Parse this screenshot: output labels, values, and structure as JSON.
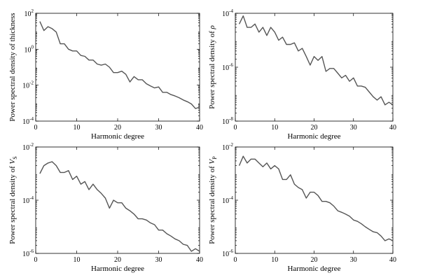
{
  "chart_data": [
    {
      "type": "line",
      "ylabel": "Power spectral density of thickness",
      "xlabel": "Harmonic degree",
      "xlim": [
        0,
        40
      ],
      "ylim": [
        0.0001,
        100
      ],
      "yscale": "log",
      "xticks": [
        0,
        10,
        20,
        30,
        40
      ],
      "xtick_labels": [
        "0",
        "10",
        "20",
        "30",
        "40"
      ],
      "yticks": [
        0.0001,
        0.01,
        1,
        100
      ],
      "ytick_labels": [
        {
          "base": "10",
          "exp": "-4"
        },
        {
          "base": "10",
          "exp": "-2"
        },
        {
          "base": "10",
          "exp": "0"
        },
        {
          "base": "10",
          "exp": "2"
        }
      ],
      "grid": false,
      "color": "#555555",
      "x": [
        1,
        2,
        3,
        4,
        5,
        6,
        7,
        8,
        9,
        10,
        11,
        12,
        13,
        14,
        15,
        16,
        17,
        18,
        19,
        20,
        21,
        22,
        23,
        24,
        25,
        26,
        27,
        28,
        29,
        30,
        31,
        32,
        33,
        34,
        35,
        36,
        37,
        38,
        39,
        40
      ],
      "values": [
        35,
        11,
        18,
        14,
        9,
        2,
        2,
        1,
        0.8,
        0.8,
        0.45,
        0.4,
        0.25,
        0.25,
        0.15,
        0.13,
        0.15,
        0.1,
        0.05,
        0.05,
        0.06,
        0.04,
        0.015,
        0.03,
        0.02,
        0.02,
        0.012,
        0.009,
        0.007,
        0.008,
        0.004,
        0.004,
        0.003,
        0.0025,
        0.002,
        0.0015,
        0.0012,
        0.0009,
        0.0005,
        0.0006
      ]
    },
    {
      "type": "line",
      "ylabel": "Power spectral density of ",
      "ylabel_var": "ρ",
      "xlabel": "Harmonic degree",
      "xlim": [
        0,
        40
      ],
      "ylim": [
        1e-08,
        0.0001
      ],
      "yscale": "log",
      "xticks": [
        0,
        10,
        20,
        30,
        40
      ],
      "xtick_labels": [
        "0",
        "10",
        "20",
        "30",
        "40"
      ],
      "yticks": [
        1e-08,
        1e-06,
        0.0001
      ],
      "ytick_labels": [
        {
          "base": "10",
          "exp": "-8"
        },
        {
          "base": "10",
          "exp": "-6"
        },
        {
          "base": "10",
          "exp": "-4"
        }
      ],
      "grid": false,
      "color": "#555555",
      "x": [
        1,
        2,
        3,
        4,
        5,
        6,
        7,
        8,
        9,
        10,
        11,
        12,
        13,
        14,
        15,
        16,
        17,
        18,
        19,
        20,
        21,
        22,
        23,
        24,
        25,
        26,
        27,
        28,
        29,
        30,
        31,
        32,
        33,
        34,
        35,
        36,
        37,
        38,
        39,
        40
      ],
      "values": [
        4e-05,
        8e-05,
        3e-05,
        3e-05,
        4e-05,
        2e-05,
        3e-05,
        1.5e-05,
        3e-05,
        2e-05,
        1e-05,
        1.3e-05,
        7e-06,
        7e-06,
        8e-06,
        4e-06,
        5e-06,
        2.5e-06,
        1.2e-06,
        2.5e-06,
        1.8e-06,
        2.5e-06,
        7e-07,
        9e-07,
        9e-07,
        6e-07,
        4e-07,
        5e-07,
        3e-07,
        4e-07,
        2e-07,
        2e-07,
        1.8e-07,
        1.2e-07,
        8e-08,
        6e-08,
        8e-08,
        4e-08,
        5e-08,
        4e-08
      ]
    },
    {
      "type": "line",
      "ylabel": "Power spectral density of ",
      "ylabel_var": "V",
      "ylabel_sub": "S",
      "xlabel": "Harmonic degree",
      "xlim": [
        0,
        40
      ],
      "ylim": [
        1e-06,
        0.01
      ],
      "yscale": "log",
      "xticks": [
        0,
        10,
        20,
        30,
        40
      ],
      "xtick_labels": [
        "0",
        "10",
        "20",
        "30",
        "40"
      ],
      "yticks": [
        1e-06,
        0.0001,
        0.01
      ],
      "ytick_labels": [
        {
          "base": "10",
          "exp": "-6"
        },
        {
          "base": "10",
          "exp": "-4"
        },
        {
          "base": "10",
          "exp": "-2"
        }
      ],
      "grid": false,
      "color": "#555555",
      "x": [
        1,
        2,
        3,
        4,
        5,
        6,
        7,
        8,
        9,
        10,
        11,
        12,
        13,
        14,
        15,
        16,
        17,
        18,
        19,
        20,
        21,
        22,
        23,
        24,
        25,
        26,
        27,
        28,
        29,
        30,
        31,
        32,
        33,
        34,
        35,
        36,
        37,
        38,
        39,
        40
      ],
      "values": [
        0.001,
        0.002,
        0.0025,
        0.0028,
        0.002,
        0.0011,
        0.0011,
        0.0013,
        0.0006,
        0.0008,
        0.0004,
        0.0005,
        0.00025,
        0.0004,
        0.00025,
        0.00018,
        0.00012,
        5e-05,
        0.0001,
        8e-05,
        8e-05,
        5e-05,
        4e-05,
        3e-05,
        2e-05,
        2e-05,
        1.8e-05,
        1.4e-05,
        1.2e-05,
        7.5e-06,
        7.5e-06,
        5.5e-06,
        4.5e-06,
        3.5e-06,
        3e-06,
        2.2e-06,
        2e-06,
        1.2e-06,
        1.5e-06,
        1.2e-06
      ]
    },
    {
      "type": "line",
      "ylabel": "Power spectral density of ",
      "ylabel_var": "V",
      "ylabel_sub": "P",
      "xlabel": "Harmonic degree",
      "xlim": [
        0,
        40
      ],
      "ylim": [
        1e-06,
        0.01
      ],
      "yscale": "log",
      "xticks": [
        0,
        10,
        20,
        30,
        40
      ],
      "xtick_labels": [
        "0",
        "10",
        "20",
        "30",
        "40"
      ],
      "yticks": [
        1e-06,
        0.0001,
        0.01
      ],
      "ytick_labels": [
        {
          "base": "10",
          "exp": "-6"
        },
        {
          "base": "10",
          "exp": "-4"
        },
        {
          "base": "10",
          "exp": "-2"
        }
      ],
      "grid": false,
      "color": "#555555",
      "x": [
        1,
        2,
        3,
        4,
        5,
        6,
        7,
        8,
        9,
        10,
        11,
        12,
        13,
        14,
        15,
        16,
        17,
        18,
        19,
        20,
        21,
        22,
        23,
        24,
        25,
        26,
        27,
        28,
        29,
        30,
        31,
        32,
        33,
        34,
        35,
        36,
        37,
        38,
        39,
        40
      ],
      "values": [
        0.002,
        0.0045,
        0.0025,
        0.0035,
        0.0035,
        0.0025,
        0.0018,
        0.0025,
        0.0015,
        0.002,
        0.0015,
        0.0006,
        0.0006,
        0.0009,
        0.0004,
        0.0003,
        0.00025,
        0.00012,
        0.0002,
        0.0002,
        0.00015,
        9e-05,
        9e-05,
        8e-05,
        6e-05,
        4e-05,
        3.5e-05,
        3e-05,
        2.5e-05,
        1.8e-05,
        1.6e-05,
        1.3e-05,
        1e-05,
        8e-06,
        6.5e-06,
        6e-06,
        4.5e-06,
        3e-06,
        3.5e-06,
        3e-06
      ]
    }
  ]
}
